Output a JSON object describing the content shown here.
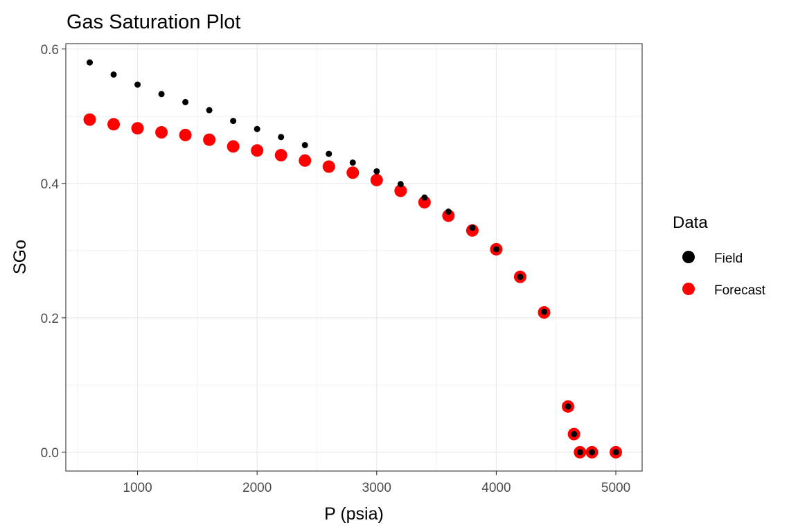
{
  "chart_data": {
    "type": "scatter",
    "title": "Gas Saturation Plot",
    "xlabel": "P (psia)",
    "ylabel": "SGo",
    "xlim": [
      400,
      5220
    ],
    "ylim": [
      -0.028,
      0.608
    ],
    "x_ticks": [
      1000,
      2000,
      3000,
      4000,
      5000
    ],
    "x_tick_labels": [
      "1000",
      "2000",
      "3000",
      "4000",
      "5000"
    ],
    "y_ticks": [
      0.0,
      0.2,
      0.4,
      0.6
    ],
    "y_tick_labels": [
      "0.0",
      "0.2",
      "0.4",
      "0.6"
    ],
    "grid": true,
    "legend": {
      "title": "Data",
      "position": "right"
    },
    "series": [
      {
        "name": "Forecast",
        "color": "#ff0000",
        "points": [
          [
            600,
            0.495
          ],
          [
            800,
            0.488
          ],
          [
            1000,
            0.482
          ],
          [
            1200,
            0.476
          ],
          [
            1400,
            0.472
          ],
          [
            1600,
            0.465
          ],
          [
            1800,
            0.455
          ],
          [
            2000,
            0.449
          ],
          [
            2200,
            0.442
          ],
          [
            2400,
            0.434
          ],
          [
            2600,
            0.425
          ],
          [
            2800,
            0.416
          ],
          [
            3000,
            0.405
          ],
          [
            3200,
            0.389
          ],
          [
            3400,
            0.372
          ],
          [
            3600,
            0.352
          ],
          [
            3800,
            0.33
          ],
          [
            4000,
            0.302
          ],
          [
            4200,
            0.261
          ],
          [
            4400,
            0.208
          ],
          [
            4600,
            0.068
          ],
          [
            4650,
            0.027
          ],
          [
            4700,
            0.0
          ],
          [
            4800,
            0.0
          ],
          [
            5000,
            0.0
          ]
        ]
      },
      {
        "name": "Field",
        "color": "#000000",
        "points": [
          [
            600,
            0.58
          ],
          [
            800,
            0.562
          ],
          [
            1000,
            0.547
          ],
          [
            1200,
            0.533
          ],
          [
            1400,
            0.521
          ],
          [
            1600,
            0.509
          ],
          [
            1800,
            0.493
          ],
          [
            2000,
            0.481
          ],
          [
            2200,
            0.469
          ],
          [
            2400,
            0.457
          ],
          [
            2600,
            0.444
          ],
          [
            2800,
            0.431
          ],
          [
            3000,
            0.418
          ],
          [
            3200,
            0.399
          ],
          [
            3400,
            0.379
          ],
          [
            3600,
            0.358
          ],
          [
            3800,
            0.334
          ],
          [
            4000,
            0.302
          ],
          [
            4200,
            0.261
          ],
          [
            4400,
            0.209
          ],
          [
            4600,
            0.068
          ],
          [
            4650,
            0.027
          ],
          [
            4700,
            0.0
          ],
          [
            4800,
            0.0
          ],
          [
            5000,
            0.0
          ]
        ]
      }
    ]
  }
}
